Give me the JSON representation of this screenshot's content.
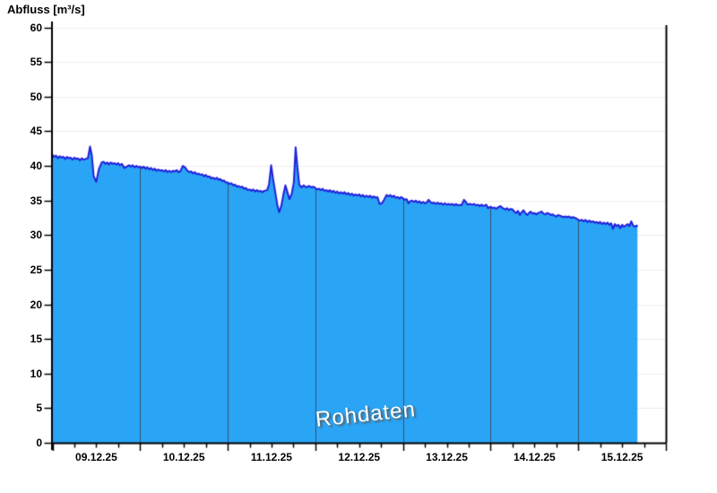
{
  "header": {
    "title": "Abfluss [m³/s]"
  },
  "watermark": {
    "label": "Rohdaten"
  },
  "chart_data": {
    "type": "area",
    "title": "Abfluss [m³/s]",
    "ylabel": "Abfluss [m³/s]",
    "xlabel": "",
    "legend": "none",
    "grid": "horizontal-light, vertical day lines inside filled area only",
    "watermark": "Rohdaten",
    "y_axis": {
      "min": 0,
      "max": 60,
      "step": 5,
      "tick_labels": [
        "0",
        "5",
        "10",
        "15",
        "20",
        "25",
        "30",
        "35",
        "40",
        "45",
        "50",
        "55",
        "60"
      ]
    },
    "x_axis": {
      "days": 7,
      "minor_ticks_per_day": 4,
      "tick_labels": [
        "09.12.25",
        "10.12.25",
        "11.12.25",
        "12.12.25",
        "13.12.25",
        "14.12.25",
        "15.12.25"
      ]
    },
    "colors": {
      "fill": "#2AA4F5",
      "line": "#2120DC",
      "day_line": "#35536E",
      "grid": "#ECECEC",
      "axis": "#000000",
      "text": "#000000"
    },
    "series": [
      {
        "name": "Rohdaten",
        "unit": "m³/s",
        "x_unit": "hours since 09.12.25 00:00",
        "points": [
          [
            0,
            41.6
          ],
          [
            0.5,
            41.3
          ],
          [
            1,
            41.5
          ],
          [
            1.5,
            41.1
          ],
          [
            2,
            41.4
          ],
          [
            2.5,
            41.2
          ],
          [
            3,
            41.3
          ],
          [
            3.5,
            41.0
          ],
          [
            4,
            41.3
          ],
          [
            4.5,
            41.1
          ],
          [
            5,
            41.2
          ],
          [
            5.5,
            40.9
          ],
          [
            6,
            41.2
          ],
          [
            6.5,
            41.0
          ],
          [
            7,
            41.1
          ],
          [
            7.5,
            40.8
          ],
          [
            8,
            41.1
          ],
          [
            8.5,
            40.9
          ],
          [
            9,
            41.0
          ],
          [
            9.7,
            41.1
          ],
          [
            10.3,
            42.8
          ],
          [
            10.8,
            41.5
          ],
          [
            11.3,
            38.5
          ],
          [
            12,
            37.7
          ],
          [
            12.7,
            39.5
          ],
          [
            13.5,
            40.5
          ],
          [
            14,
            40.6
          ],
          [
            14.5,
            40.3
          ],
          [
            15,
            40.5
          ],
          [
            15.5,
            40.2
          ],
          [
            16,
            40.5
          ],
          [
            16.5,
            40.3
          ],
          [
            17,
            40.4
          ],
          [
            17.5,
            40.2
          ],
          [
            18,
            40.4
          ],
          [
            18.5,
            40.1
          ],
          [
            19,
            40.3
          ],
          [
            19.7,
            39.7
          ],
          [
            20.3,
            39.9
          ],
          [
            21,
            40.1
          ],
          [
            21.5,
            39.9
          ],
          [
            22,
            40.1
          ],
          [
            22.5,
            39.8
          ],
          [
            23,
            40.0
          ],
          [
            23.5,
            39.8
          ],
          [
            24,
            39.9
          ],
          [
            24.5,
            39.7
          ],
          [
            25,
            39.9
          ],
          [
            25.5,
            39.6
          ],
          [
            26,
            39.8
          ],
          [
            26.5,
            39.5
          ],
          [
            27,
            39.7
          ],
          [
            27.5,
            39.4
          ],
          [
            28,
            39.6
          ],
          [
            28.5,
            39.3
          ],
          [
            29,
            39.5
          ],
          [
            29.5,
            39.3
          ],
          [
            30,
            39.4
          ],
          [
            30.5,
            39.2
          ],
          [
            31,
            39.4
          ],
          [
            31.5,
            39.1
          ],
          [
            32,
            39.3
          ],
          [
            32.5,
            39.1
          ],
          [
            33,
            39.3
          ],
          [
            33.5,
            39.2
          ],
          [
            34,
            39.4
          ],
          [
            34.5,
            39.1
          ],
          [
            35,
            39.2
          ],
          [
            35.7,
            40.0
          ],
          [
            36.3,
            39.8
          ],
          [
            37,
            39.3
          ],
          [
            37.5,
            39.1
          ],
          [
            38,
            39.2
          ],
          [
            38.5,
            38.9
          ],
          [
            39,
            39.1
          ],
          [
            39.5,
            38.8
          ],
          [
            40,
            38.9
          ],
          [
            40.5,
            38.7
          ],
          [
            41,
            38.8
          ],
          [
            41.5,
            38.5
          ],
          [
            42,
            38.7
          ],
          [
            42.5,
            38.4
          ],
          [
            43,
            38.5
          ],
          [
            43.5,
            38.2
          ],
          [
            44,
            38.3
          ],
          [
            44.5,
            38.1
          ],
          [
            45,
            38.3
          ],
          [
            45.5,
            38.0
          ],
          [
            46,
            38.1
          ],
          [
            46.5,
            37.8
          ],
          [
            47,
            37.9
          ],
          [
            47.5,
            37.6
          ],
          [
            48,
            37.6
          ],
          [
            48.5,
            37.4
          ],
          [
            49,
            37.5
          ],
          [
            49.5,
            37.2
          ],
          [
            50,
            37.3
          ],
          [
            50.5,
            37.0
          ],
          [
            51,
            37.1
          ],
          [
            51.5,
            36.9
          ],
          [
            52,
            37.0
          ],
          [
            52.5,
            36.7
          ],
          [
            53,
            36.8
          ],
          [
            53.5,
            36.5
          ],
          [
            54,
            36.6
          ],
          [
            54.5,
            36.4
          ],
          [
            55,
            36.6
          ],
          [
            55.5,
            36.3
          ],
          [
            56,
            36.5
          ],
          [
            56.5,
            36.3
          ],
          [
            57,
            36.4
          ],
          [
            57.5,
            36.2
          ],
          [
            58,
            36.4
          ],
          [
            58.8,
            36.5
          ],
          [
            59.3,
            37.3
          ],
          [
            59.9,
            40.1
          ],
          [
            60.4,
            38.2
          ],
          [
            61,
            36.3
          ],
          [
            61.6,
            34.3
          ],
          [
            62.1,
            33.3
          ],
          [
            62.7,
            34.3
          ],
          [
            63.3,
            36.0
          ],
          [
            63.8,
            37.2
          ],
          [
            64.3,
            36.3
          ],
          [
            64.9,
            35.2
          ],
          [
            65.5,
            35.9
          ],
          [
            66.1,
            37.6
          ],
          [
            66.6,
            42.7
          ],
          [
            67.1,
            39.8
          ],
          [
            67.6,
            37.3
          ],
          [
            68.2,
            36.9
          ],
          [
            68.8,
            37.2
          ],
          [
            69.5,
            36.9
          ],
          [
            70.2,
            37.1
          ],
          [
            71,
            36.9
          ],
          [
            71.5,
            37.0
          ],
          [
            72,
            36.8
          ],
          [
            72.5,
            36.6
          ],
          [
            73,
            36.7
          ],
          [
            73.5,
            36.5
          ],
          [
            74,
            36.7
          ],
          [
            74.5,
            36.4
          ],
          [
            75,
            36.5
          ],
          [
            75.5,
            36.3
          ],
          [
            76,
            36.5
          ],
          [
            76.5,
            36.2
          ],
          [
            77,
            36.4
          ],
          [
            77.5,
            36.1
          ],
          [
            78,
            36.3
          ],
          [
            78.5,
            36.0
          ],
          [
            79,
            36.2
          ],
          [
            79.5,
            36.0
          ],
          [
            80,
            36.2
          ],
          [
            80.5,
            35.9
          ],
          [
            81,
            36.1
          ],
          [
            81.5,
            35.8
          ],
          [
            82,
            36.0
          ],
          [
            82.5,
            35.7
          ],
          [
            83,
            35.9
          ],
          [
            83.5,
            35.7
          ],
          [
            84,
            35.9
          ],
          [
            84.5,
            35.6
          ],
          [
            85,
            35.8
          ],
          [
            85.5,
            35.5
          ],
          [
            86,
            35.7
          ],
          [
            86.5,
            35.5
          ],
          [
            87,
            35.7
          ],
          [
            87.5,
            35.4
          ],
          [
            88,
            35.6
          ],
          [
            88.5,
            35.4
          ],
          [
            89,
            35.5
          ],
          [
            89.6,
            34.5
          ],
          [
            90.2,
            34.6
          ],
          [
            90.8,
            35.1
          ],
          [
            91.5,
            35.8
          ],
          [
            92,
            35.6
          ],
          [
            92.5,
            35.8
          ],
          [
            93,
            35.5
          ],
          [
            93.5,
            35.7
          ],
          [
            94,
            35.4
          ],
          [
            94.5,
            35.5
          ],
          [
            95,
            35.3
          ],
          [
            95.5,
            35.5
          ],
          [
            96,
            35.3
          ],
          [
            96.5,
            35.1
          ],
          [
            97,
            35.2
          ],
          [
            97.5,
            34.6
          ],
          [
            98,
            34.9
          ],
          [
            98.5,
            35.0
          ],
          [
            99,
            34.8
          ],
          [
            99.5,
            35.0
          ],
          [
            100,
            34.7
          ],
          [
            100.5,
            34.9
          ],
          [
            101,
            34.6
          ],
          [
            101.5,
            34.8
          ],
          [
            102,
            34.6
          ],
          [
            102.5,
            34.7
          ],
          [
            103,
            35.1
          ],
          [
            103.5,
            34.8
          ],
          [
            104,
            34.6
          ],
          [
            104.5,
            34.7
          ],
          [
            105,
            34.5
          ],
          [
            105.5,
            34.7
          ],
          [
            106,
            34.5
          ],
          [
            106.5,
            34.6
          ],
          [
            107,
            34.4
          ],
          [
            107.5,
            34.6
          ],
          [
            108,
            34.4
          ],
          [
            108.5,
            34.5
          ],
          [
            109,
            34.4
          ],
          [
            109.5,
            34.5
          ],
          [
            110,
            34.3
          ],
          [
            110.5,
            34.5
          ],
          [
            111,
            34.3
          ],
          [
            111.5,
            34.4
          ],
          [
            112,
            34.3
          ],
          [
            112.7,
            35.1
          ],
          [
            113.2,
            34.8
          ],
          [
            113.7,
            34.4
          ],
          [
            114.2,
            34.5
          ],
          [
            115,
            34.4
          ],
          [
            115.5,
            34.5
          ],
          [
            116,
            34.3
          ],
          [
            116.5,
            34.4
          ],
          [
            117,
            34.2
          ],
          [
            117.5,
            34.4
          ],
          [
            118,
            34.2
          ],
          [
            118.8,
            34.4
          ],
          [
            119.3,
            33.9
          ],
          [
            120,
            34.1
          ],
          [
            120.5,
            33.9
          ],
          [
            121,
            34.0
          ],
          [
            121.5,
            33.8
          ],
          [
            122,
            34.0
          ],
          [
            122.7,
            34.2
          ],
          [
            123.3,
            33.9
          ],
          [
            124,
            33.7
          ],
          [
            124.5,
            33.9
          ],
          [
            125,
            33.6
          ],
          [
            125.5,
            33.8
          ],
          [
            126,
            33.7
          ],
          [
            126.5,
            33.4
          ],
          [
            127,
            33.2
          ],
          [
            127.5,
            33.5
          ],
          [
            128,
            32.9
          ],
          [
            128.5,
            33.3
          ],
          [
            129,
            33.6
          ],
          [
            129.5,
            33.2
          ],
          [
            130,
            32.9
          ],
          [
            130.5,
            33.2
          ],
          [
            131,
            33.4
          ],
          [
            131.5,
            33.1
          ],
          [
            132,
            33.2
          ],
          [
            132.5,
            33.0
          ],
          [
            133,
            33.2
          ],
          [
            133.5,
            33.3
          ],
          [
            134,
            33.4
          ],
          [
            134.5,
            33.1
          ],
          [
            135,
            33.0
          ],
          [
            135.5,
            33.2
          ],
          [
            136,
            33.1
          ],
          [
            136.5,
            32.9
          ],
          [
            137,
            33.0
          ],
          [
            137.5,
            32.8
          ],
          [
            138,
            32.7
          ],
          [
            138.5,
            32.9
          ],
          [
            139,
            32.8
          ],
          [
            139.5,
            32.7
          ],
          [
            140,
            32.6
          ],
          [
            140.5,
            32.7
          ],
          [
            141,
            32.6
          ],
          [
            141.5,
            32.7
          ],
          [
            142,
            32.5
          ],
          [
            142.5,
            32.6
          ],
          [
            143,
            32.5
          ],
          [
            143.5,
            32.4
          ],
          [
            144,
            32.2
          ],
          [
            144.5,
            32.1
          ],
          [
            145,
            32.2
          ],
          [
            145.5,
            32.0
          ],
          [
            146,
            32.2
          ],
          [
            146.5,
            31.9
          ],
          [
            147,
            32.1
          ],
          [
            147.5,
            31.9
          ],
          [
            148,
            32.0
          ],
          [
            148.5,
            31.8
          ],
          [
            149,
            31.9
          ],
          [
            149.5,
            31.7
          ],
          [
            150,
            31.9
          ],
          [
            150.5,
            31.6
          ],
          [
            151,
            31.8
          ],
          [
            151.5,
            31.6
          ],
          [
            152,
            31.8
          ],
          [
            152.5,
            31.5
          ],
          [
            153,
            31.7
          ],
          [
            153.5,
            30.9
          ],
          [
            154,
            31.6
          ],
          [
            154.5,
            31.3
          ],
          [
            155,
            31.5
          ],
          [
            155.5,
            31.0
          ],
          [
            156,
            31.5
          ],
          [
            156.5,
            31.2
          ],
          [
            157,
            31.4
          ],
          [
            157.5,
            31.6
          ],
          [
            158,
            31.3
          ],
          [
            158.5,
            32.0
          ],
          [
            159,
            31.4
          ],
          [
            159.5,
            31.2
          ],
          [
            160,
            31.4
          ],
          [
            160.2,
            31.2
          ]
        ]
      }
    ]
  }
}
